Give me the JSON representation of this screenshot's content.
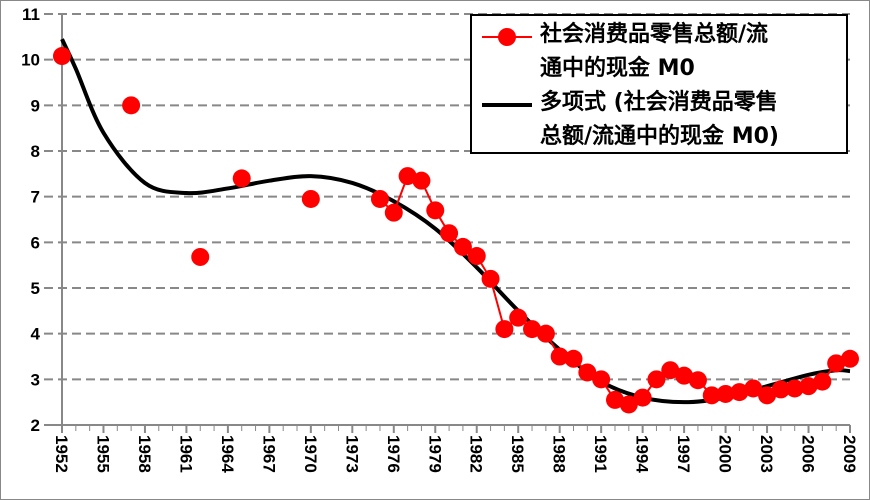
{
  "chart_data": {
    "type": "line",
    "title": "",
    "xlabel": "",
    "ylabel": "",
    "xlim": [
      1952,
      2009
    ],
    "ylim": [
      2,
      11
    ],
    "yticks": [
      2,
      3,
      4,
      5,
      6,
      7,
      8,
      9,
      10,
      11
    ],
    "xticks": [
      1952,
      1955,
      1958,
      1961,
      1964,
      1967,
      1970,
      1973,
      1976,
      1979,
      1982,
      1985,
      1988,
      1991,
      1994,
      1997,
      2000,
      2003,
      2006,
      2009
    ],
    "grid": "horizontal dashed",
    "legend_position": "top-right",
    "series": [
      {
        "name": "社会消费品零售总额/流通中的现金M0",
        "color": "#ff0000",
        "style": "line-markers",
        "x": [
          1952,
          1957,
          1962,
          1965,
          1970,
          1975,
          1976,
          1977,
          1978,
          1979,
          1980,
          1981,
          1982,
          1983,
          1984,
          1985,
          1986,
          1987,
          1988,
          1989,
          1990,
          1991,
          1992,
          1993,
          1994,
          1995,
          1996,
          1997,
          1998,
          1999,
          2000,
          2001,
          2002,
          2003,
          2004,
          2005,
          2006,
          2007,
          2008,
          2009
        ],
        "values": [
          10.08,
          9.0,
          5.68,
          7.4,
          6.95,
          6.95,
          6.65,
          7.45,
          7.35,
          6.7,
          6.2,
          5.9,
          5.7,
          5.2,
          4.1,
          4.35,
          4.1,
          4.0,
          3.5,
          3.45,
          3.15,
          3.0,
          2.55,
          2.45,
          2.6,
          3.0,
          3.2,
          3.08,
          2.98,
          2.65,
          2.68,
          2.72,
          2.8,
          2.65,
          2.78,
          2.8,
          2.85,
          2.95,
          3.35,
          3.45
        ],
        "connected_from": 1975
      },
      {
        "name": "多项式 (社会消费品零售总额/流通中的现金M0)",
        "color": "#000000",
        "style": "trendline",
        "x": [
          1952,
          1953,
          1955,
          1958,
          1961,
          1964,
          1967,
          1970,
          1973,
          1976,
          1979,
          1982,
          1985,
          1988,
          1991,
          1994,
          1997,
          2000,
          2003,
          2006,
          2008,
          2009
        ],
        "values": [
          10.45,
          9.8,
          8.4,
          7.3,
          7.08,
          7.18,
          7.35,
          7.45,
          7.3,
          6.9,
          6.3,
          5.45,
          4.5,
          3.65,
          2.95,
          2.6,
          2.5,
          2.6,
          2.85,
          3.1,
          3.2,
          3.18
        ]
      }
    ]
  },
  "legend": {
    "item1_line1": "社会消费品零售总额/流",
    "item1_line2": "通中的现金 M0",
    "item2_line1": "多项式 (社会消费品零售",
    "item2_line2": "总额/流通中的现金 M0)"
  }
}
